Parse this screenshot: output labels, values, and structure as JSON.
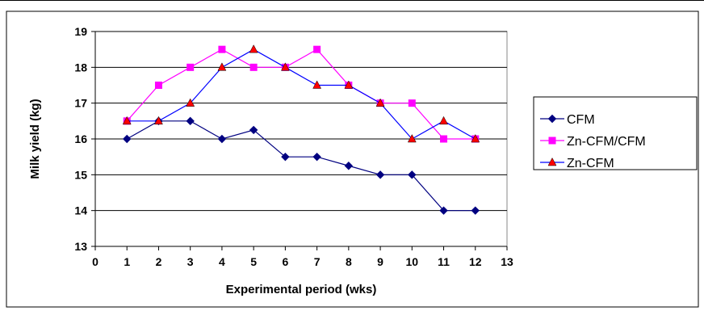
{
  "chart_data": {
    "type": "line",
    "xlabel": "Experimental period (wks)",
    "ylabel": "Milk yield (kg)",
    "xlim": [
      0,
      13
    ],
    "ylim": [
      13,
      19
    ],
    "x_ticks": [
      "0",
      "1",
      "2",
      "3",
      "4",
      "5",
      "6",
      "7",
      "8",
      "9",
      "10",
      "11",
      "12",
      "13"
    ],
    "y_ticks": [
      "13",
      "14",
      "15",
      "16",
      "17",
      "18",
      "19"
    ],
    "grid": "horizontal",
    "legend_position": "right",
    "x": [
      1,
      2,
      3,
      4,
      5,
      6,
      7,
      8,
      9,
      10,
      11,
      12
    ],
    "series": [
      {
        "name": "CFM",
        "color": "#000080",
        "marker": "diamond",
        "values": [
          16,
          16.5,
          16.5,
          16,
          16.25,
          15.5,
          15.5,
          15.25,
          15,
          15,
          14,
          14
        ]
      },
      {
        "name": "Zn-CFM/CFM",
        "color": "#FF00FF",
        "marker": "square",
        "values": [
          16.5,
          17.5,
          18,
          18.5,
          18,
          18,
          18.5,
          17.5,
          17,
          17,
          16,
          16
        ]
      },
      {
        "name": "Zn-CFM",
        "color": "#FF0000",
        "line_color": "#0000FF",
        "marker": "triangle",
        "values": [
          16.5,
          16.5,
          17,
          18,
          18.5,
          18,
          17.5,
          17.5,
          17,
          16,
          16.5,
          16
        ]
      }
    ]
  }
}
